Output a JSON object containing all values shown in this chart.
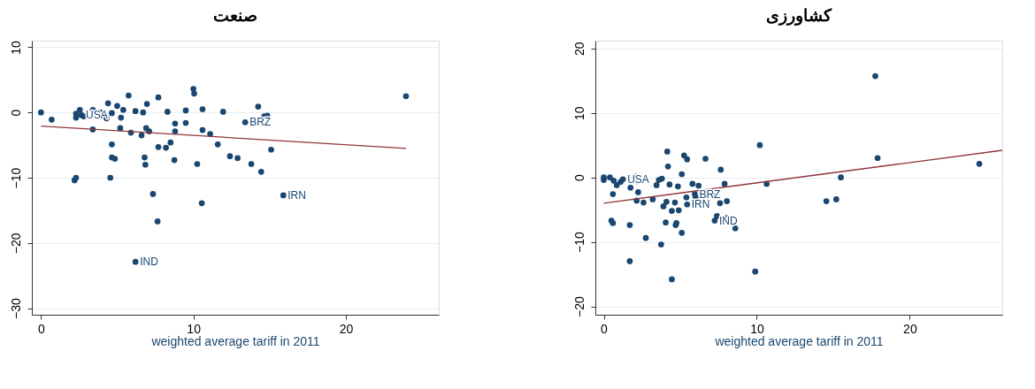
{
  "chart_data": [
    {
      "type": "scatter",
      "title": "صنعت",
      "xlabel": "weighted average tariff in 2011",
      "xlim": [
        -0.6,
        26.1
      ],
      "ylim": [
        -31,
        11
      ],
      "xticks": [
        0,
        10,
        20
      ],
      "yticks": [
        -30,
        -20,
        -10,
        0,
        10
      ],
      "grid": "y",
      "series": [
        {
          "marker": "circle",
          "color": "#1a476f",
          "x": [
            0,
            0.7,
            2.3,
            2.55,
            2.3,
            2.65,
            2.8,
            3.4,
            3.4,
            3.9,
            4.3,
            4.4,
            4.65,
            4.65,
            4.65,
            4.85,
            4.55,
            5.0,
            5.2,
            5.25,
            5.4,
            5.75,
            5.9,
            6.2,
            6.6,
            6.7,
            6.9,
            6.95,
            7.1,
            6.8,
            6.85,
            7.35,
            7.7,
            7.7,
            7.65,
            6.2,
            8.2,
            8.5,
            8.3,
            8.8,
            8.8,
            8.75,
            9.5,
            9.5,
            10.0,
            10.05,
            10.6,
            10.6,
            11.1,
            10.25,
            10.55,
            11.6,
            11.95,
            12.4,
            12.9,
            13.4,
            13.8,
            14.25,
            14.65,
            14.85,
            14.45,
            15.1,
            15.9,
            23.95,
            2.2,
            2.3
          ],
          "values": [
            0,
            -1.1,
            -0.2,
            0.4,
            -0.8,
            -0.4,
            -0.6,
            0.4,
            -2.6,
            0,
            -0.9,
            1.4,
            -0.1,
            -4.9,
            -6.9,
            -7.1,
            -10,
            1.0,
            -2.4,
            -0.8,
            0.4,
            2.6,
            -3.1,
            0.2,
            -3.5,
            0,
            -2.4,
            1.3,
            -2.9,
            -6.9,
            -8.0,
            -12.5,
            2.3,
            -5.3,
            -16.7,
            -22.9,
            -5.4,
            -4.6,
            0.1,
            -1.7,
            -2.9,
            -7.3,
            0.3,
            -1.6,
            3.6,
            2.9,
            0.5,
            -2.7,
            -3.3,
            -7.9,
            -13.9,
            -4.9,
            0.1,
            -6.7,
            -7.0,
            -1.5,
            -7.9,
            0.9,
            -0.6,
            -0.5,
            -9.1,
            -5.7,
            -12.7,
            2.5,
            -10.4,
            -10.0
          ]
        },
        {
          "type": "line",
          "marker": "none",
          "color": "#90353b",
          "x": [
            0,
            23.95
          ],
          "values": [
            -2.1,
            -5.5
          ]
        }
      ],
      "annotations": [
        {
          "text": "USA",
          "x": 2.65,
          "y": -0.4
        },
        {
          "text": "BRZ",
          "x": 13.4,
          "y": -1.5
        },
        {
          "text": "IRN",
          "x": 15.9,
          "y": -12.7
        },
        {
          "text": "IND",
          "x": 6.2,
          "y": -22.9
        }
      ]
    },
    {
      "type": "scatter",
      "title": "کشاورزی",
      "xlabel": "weighted average tariff in 2011",
      "xlim": [
        -0.55,
        26.05
      ],
      "ylim": [
        -21.3,
        21.2
      ],
      "xticks": [
        0,
        10,
        20
      ],
      "yticks": [
        -20,
        -10,
        0,
        10,
        20
      ],
      "grid": "y",
      "series": [
        {
          "marker": "circle",
          "color": "#1a476f",
          "x": [
            0,
            0,
            0.4,
            0.65,
            0.85,
            1.1,
            1.25,
            0.5,
            0.6,
            0.6,
            1.7,
            1.7,
            1.75,
            2.05,
            2.2,
            2.25,
            2.15,
            2.6,
            2.75,
            3.2,
            3.45,
            3.6,
            3.8,
            3.75,
            3.9,
            4.05,
            4.1,
            4.15,
            4.2,
            4.3,
            4.45,
            4.45,
            4.65,
            4.75,
            4.7,
            4.85,
            4.9,
            5.1,
            5.1,
            5.25,
            5.45,
            5.4,
            5.45,
            5.8,
            5.95,
            6.0,
            6.2,
            6.65,
            7.2,
            7.25,
            7.4,
            7.65,
            7.6,
            7.9,
            8.05,
            8.05,
            8.6,
            9.9,
            10.2,
            10.65,
            14.55,
            15.2,
            15.5,
            17.75,
            17.9,
            24.55
          ],
          "values": [
            0,
            -0.4,
            0,
            -0.5,
            -1.2,
            -0.7,
            -0.3,
            -6.7,
            -7.1,
            -2.6,
            -7.4,
            -13.0,
            -1.6,
            0.1,
            -0.6,
            -2.3,
            -3.6,
            -3.9,
            -9.4,
            -3.4,
            -1.2,
            -0.4,
            -0.2,
            -10.4,
            -4.5,
            -7.0,
            -3.8,
            4.0,
            1.7,
            -1.1,
            -5.2,
            -15.8,
            -3.9,
            -7.1,
            -7.4,
            -1.4,
            -5.1,
            0.5,
            -8.6,
            3.4,
            2.8,
            -3.1,
            -4.2,
            -1.0,
            -2.6,
            -3.1,
            -1.3,
            2.9,
            -2.9,
            -6.7,
            -6.0,
            1.2,
            -4.0,
            -1.0,
            -3.7,
            -6.3,
            -7.9,
            -14.6,
            5.0,
            -1.0,
            -3.7,
            -3.4,
            0,
            15.7,
            3.0,
            2.1
          ]
        },
        {
          "type": "line",
          "marker": "none",
          "color": "#90353b",
          "x": [
            0,
            26.05
          ],
          "values": [
            -4.0,
            4.2
          ]
        }
      ],
      "annotations": [
        {
          "text": "USA",
          "x": 1.25,
          "y": -0.3
        },
        {
          "text": "BRZ",
          "x": 5.95,
          "y": -2.6
        },
        {
          "text": "IRN",
          "x": 5.45,
          "y": -4.2
        },
        {
          "text": "IND",
          "x": 7.25,
          "y": -6.7
        }
      ]
    }
  ]
}
